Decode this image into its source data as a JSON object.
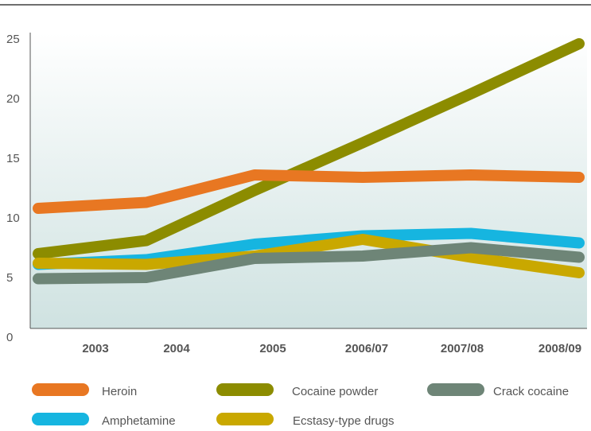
{
  "chart_data": {
    "type": "line",
    "categories": [
      "2003",
      "2004",
      "2005",
      "2006/07",
      "2007/08",
      "2008/09"
    ],
    "ylim": [
      0,
      25
    ],
    "yticks": [
      0,
      5,
      10,
      15,
      20,
      25
    ],
    "grid": false,
    "legend_position": "bottom",
    "series": [
      {
        "name": "Heroin",
        "color": "#E87722",
        "values": [
          10.8,
          11.3,
          13.6,
          13.4,
          13.6,
          13.4
        ]
      },
      {
        "name": "Cocaine powder",
        "color": "#8C8C00",
        "values": [
          7.0,
          8.1,
          12.3,
          16.3,
          20.4,
          24.6
        ]
      },
      {
        "name": "Crack cocaine",
        "color": "#6E8577",
        "values": [
          4.9,
          5.0,
          6.6,
          6.8,
          7.5,
          6.7
        ]
      },
      {
        "name": "Amphetamine",
        "color": "#16B5E0",
        "values": [
          6.1,
          6.5,
          7.8,
          8.5,
          8.7,
          7.9
        ]
      },
      {
        "name": "Ecstasy-type drugs",
        "color": "#C9A800",
        "values": [
          6.2,
          6.1,
          6.8,
          8.2,
          6.7,
          5.4
        ]
      }
    ]
  }
}
